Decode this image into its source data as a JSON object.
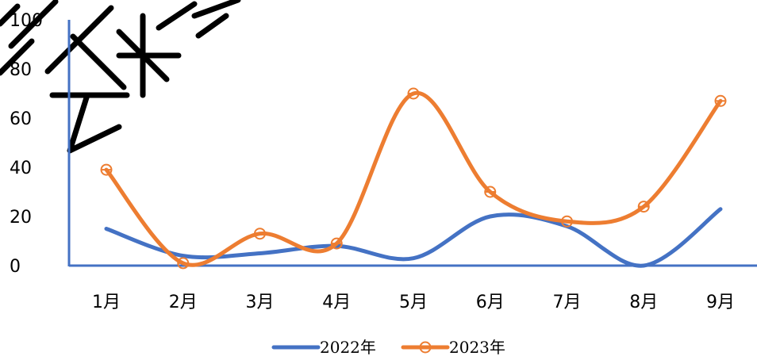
{
  "chart_data": {
    "type": "line",
    "smooth": true,
    "categories": [
      "1月",
      "2月",
      "3月",
      "4月",
      "5月",
      "6月",
      "7月",
      "8月",
      "9月"
    ],
    "series": [
      {
        "name": "2022年",
        "values": [
          15,
          4,
          5,
          8,
          3,
          20,
          16,
          0,
          23
        ],
        "color": "#4472c4",
        "marker": "none"
      },
      {
        "name": "2023年",
        "values": [
          39,
          1,
          13,
          9,
          70,
          30,
          18,
          24,
          67
        ],
        "color": "#ed7d31",
        "marker": "circle"
      }
    ],
    "y_ticks": [
      "0",
      "20",
      "40",
      "60",
      "80",
      "100"
    ],
    "ylim": [
      0,
      100
    ],
    "grid": false,
    "legend_position": "bottom",
    "axis_color": "#4472c4"
  }
}
